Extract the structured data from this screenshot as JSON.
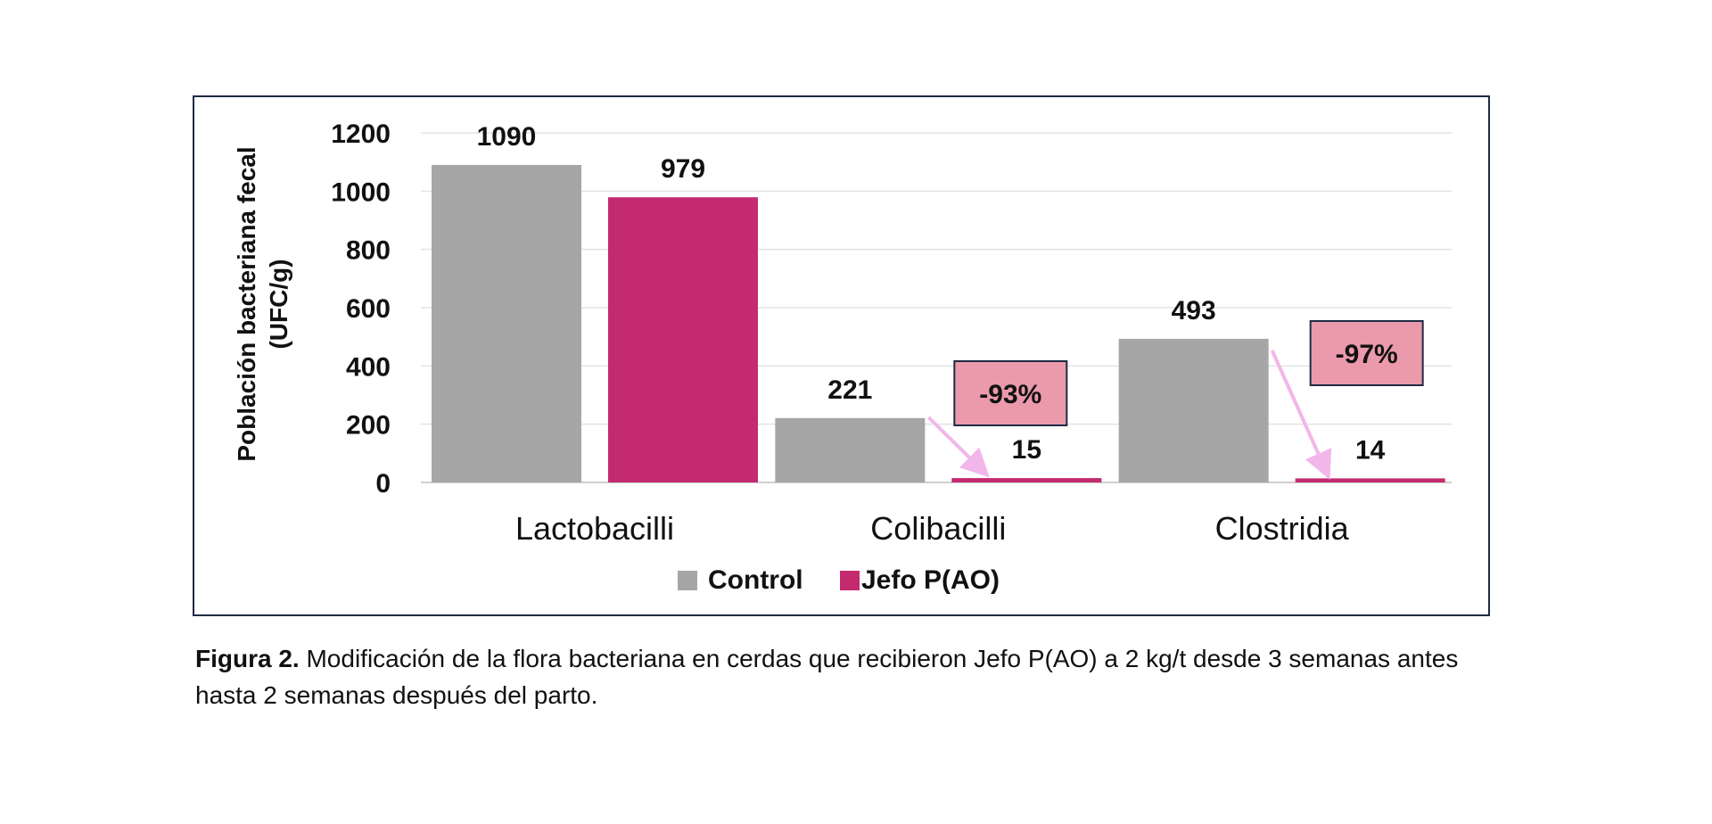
{
  "chart_data": {
    "type": "bar",
    "ylabel": "Población bacteriana fecal (UFC/g)",
    "ylabel_lines": [
      "Población bacteriana fecal",
      "(UFC/g)"
    ],
    "xlabel": "",
    "ylim": [
      0,
      1200
    ],
    "yticks": [
      0,
      200,
      400,
      600,
      800,
      1000,
      1200
    ],
    "grid": true,
    "legend_position": "bottom",
    "categories": [
      "Lactobacilli",
      "Colibacilli",
      "Clostridia"
    ],
    "series": [
      {
        "name": "Control",
        "values": [
          1090,
          221,
          493
        ],
        "color": "#a6a6a6"
      },
      {
        "name": "Jefo P(AO)",
        "values": [
          979,
          15,
          14
        ],
        "color": "#c42b6e"
      }
    ],
    "data_labels": [
      [
        "1090",
        "979"
      ],
      [
        "221",
        "15"
      ],
      [
        "493",
        "14"
      ]
    ],
    "annotations": [
      {
        "category": "Colibacilli",
        "text": "-93%"
      },
      {
        "category": "Clostridia",
        "text": "-97%"
      }
    ],
    "annotation_colors": {
      "box_fill": "#ea9aaa",
      "box_border": "#1f2a44",
      "arrow": "#f2b6ea"
    }
  },
  "caption": {
    "figure_number": "Figura 2.",
    "text": " Modificación de la flora bacteriana en cerdas que recibieron Jefo P(AO) a 2 kg/t desde 3 semanas antes hasta 2 semanas después del parto."
  }
}
